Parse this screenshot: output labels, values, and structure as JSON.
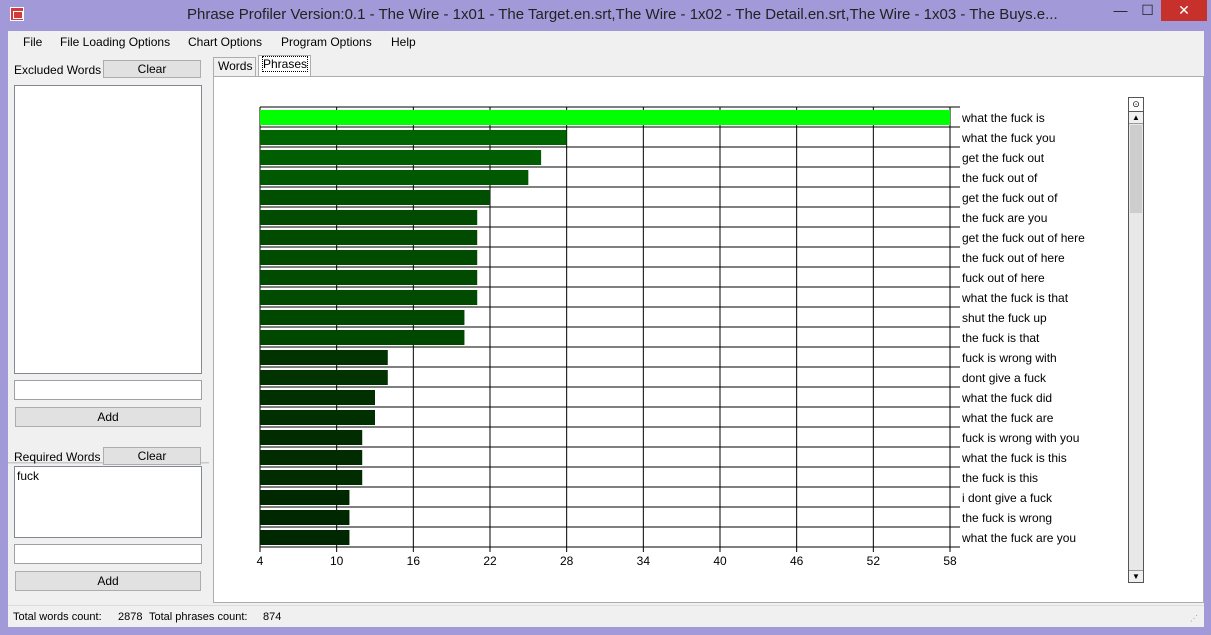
{
  "window": {
    "title": "Phrase Profiler Version:0.1 - The Wire - 1x01 - The Target.en.srt,The Wire - 1x02 - The Detail.en.srt,The Wire - 1x03 - The Buys.e...",
    "minimize": "—",
    "maximize": "☐",
    "close": "✕"
  },
  "menu": [
    "File",
    "File Loading Options",
    "Chart Options",
    "Program Options",
    "Help"
  ],
  "excluded": {
    "label": "Excluded Words",
    "clear": "Clear",
    "items": [],
    "input": "",
    "add": "Add"
  },
  "required": {
    "label": "Required Words",
    "clear": "Clear",
    "items": [
      "fuck"
    ],
    "input": "",
    "add": "Add"
  },
  "tabs": [
    {
      "label": "Words",
      "active": false
    },
    {
      "label": "Phrases",
      "active": true
    }
  ],
  "status": {
    "words_label": "Total words count:",
    "words_value": "2878",
    "phrases_label": "Total phrases count:",
    "phrases_value": "874"
  },
  "scrollbar": {
    "top_icon": "⊙",
    "up": "▲",
    "down": "▼"
  },
  "chart_data": {
    "type": "bar",
    "orientation": "horizontal",
    "categories": [
      "what the fuck is",
      "what the fuck you",
      "get the fuck out",
      "the fuck out of",
      "get the fuck out of",
      "the fuck are you",
      "get the fuck out of here",
      "the fuck out of here",
      "fuck out of here",
      "what the fuck is that",
      "shut the fuck up",
      "the fuck is that",
      "fuck is wrong with",
      "dont give a fuck",
      "what the fuck did",
      "what the fuck are",
      "fuck is wrong with you",
      "what the fuck is this",
      "the fuck is this",
      "i dont give a fuck",
      "the fuck is wrong",
      "what the fuck are you"
    ],
    "values": [
      58,
      28,
      26,
      25,
      22,
      21,
      21,
      21,
      21,
      21,
      20,
      20,
      14,
      14,
      13,
      13,
      12,
      12,
      12,
      11,
      11,
      11
    ],
    "xlim": [
      4,
      58
    ],
    "xticks": [
      4,
      10,
      16,
      22,
      28,
      34,
      40,
      46,
      52,
      58
    ],
    "grid": true,
    "colors": {
      "highlight": "#00ff00",
      "max_dark": "#006400",
      "min_dark": "#002800",
      "grid": "#000000"
    }
  }
}
